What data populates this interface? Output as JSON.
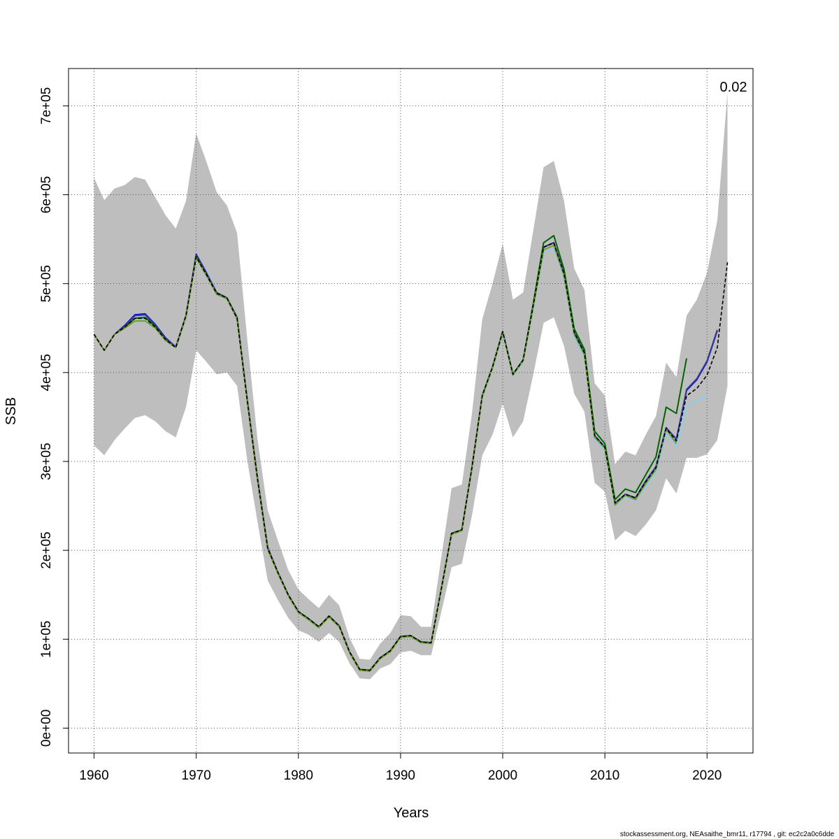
{
  "chart_data": {
    "type": "line",
    "title": "",
    "xlabel": "Years",
    "ylabel": "SSB",
    "xlim": [
      1957.5,
      2024.5
    ],
    "ylim": [
      -28000,
      742000
    ],
    "x_ticks": [
      1960,
      1970,
      1980,
      1990,
      2000,
      2010,
      2020
    ],
    "x_tick_labels": [
      "1960",
      "1970",
      "1980",
      "1990",
      "2000",
      "2010",
      "2020"
    ],
    "y_ticks": [
      0,
      100000,
      200000,
      300000,
      400000,
      500000,
      600000,
      700000
    ],
    "y_tick_labels": [
      "0e+00",
      "1e+05",
      "2e+05",
      "3e+05",
      "4e+05",
      "5e+05",
      "6e+05",
      "7e+05"
    ],
    "grid": true,
    "annotation": "0.02",
    "footer": "stockassessment.org, NEAsaithe_bmr11, r17794 , git: ec2c2a0c6dde",
    "confidence_band": {
      "color": "#bebebe",
      "x": [
        1960,
        1961,
        1962,
        1963,
        1964,
        1965,
        1966,
        1967,
        1968,
        1969,
        1970,
        1971,
        1972,
        1973,
        1974,
        1975,
        1976,
        1977,
        1978,
        1979,
        1980,
        1981,
        1982,
        1983,
        1984,
        1985,
        1986,
        1987,
        1988,
        1989,
        1990,
        1991,
        1992,
        1993,
        1994,
        1995,
        1996,
        1997,
        1998,
        1999,
        2000,
        2001,
        2002,
        2003,
        2004,
        2005,
        2006,
        2007,
        2008,
        2009,
        2010,
        2011,
        2012,
        2013,
        2014,
        2015,
        2016,
        2017,
        2018,
        2019,
        2020,
        2021,
        2022
      ],
      "upper": [
        619000,
        594000,
        607000,
        611000,
        620000,
        617000,
        597000,
        577000,
        562000,
        593000,
        669000,
        637000,
        603000,
        588000,
        557000,
        437000,
        325000,
        245000,
        211000,
        178000,
        156000,
        145000,
        135000,
        150000,
        138000,
        102000,
        78000,
        77000,
        95000,
        107000,
        127000,
        126000,
        114000,
        114000,
        193000,
        270000,
        274000,
        355000,
        460000,
        500000,
        545000,
        482000,
        490000,
        560000,
        631000,
        638000,
        593000,
        517000,
        493000,
        388000,
        374000,
        297000,
        311000,
        307000,
        330000,
        351000,
        411000,
        395000,
        464000,
        482000,
        512000,
        571000,
        715000
      ],
      "lower": [
        318000,
        307000,
        324000,
        337000,
        349000,
        352000,
        345000,
        334000,
        327000,
        361000,
        425000,
        412000,
        398000,
        400000,
        385000,
        301000,
        232000,
        166000,
        144000,
        124000,
        110000,
        105000,
        97000,
        107000,
        97000,
        73000,
        56000,
        55000,
        67000,
        72000,
        85000,
        87000,
        82000,
        82000,
        131000,
        181000,
        185000,
        240000,
        307000,
        330000,
        365000,
        327000,
        345000,
        398000,
        456000,
        462000,
        430000,
        376000,
        356000,
        276000,
        266000,
        211000,
        222000,
        216000,
        229000,
        245000,
        281000,
        264000,
        304000,
        304000,
        308000,
        324000,
        385000
      ]
    },
    "series": [
      {
        "color": "#000000",
        "dashed": true,
        "x": [
          1960,
          1961,
          1962,
          1963,
          1964,
          1965,
          1966,
          1967,
          1968,
          1969,
          1970,
          1971,
          1972,
          1973,
          1974,
          1975,
          1976,
          1977,
          1978,
          1979,
          1980,
          1981,
          1982,
          1983,
          1984,
          1985,
          1986,
          1987,
          1988,
          1989,
          1990,
          1991,
          1992,
          1993,
          1994,
          1995,
          1996,
          1997,
          1998,
          1999,
          2000,
          2001,
          2002,
          2003,
          2004,
          2005,
          2006,
          2007,
          2008,
          2009,
          2010,
          2011,
          2012,
          2013,
          2014,
          2015,
          2016,
          2017,
          2018,
          2019,
          2020,
          2021,
          2022
        ],
        "values": [
          443000,
          425000,
          443000,
          451000,
          461000,
          461000,
          451000,
          437000,
          428000,
          464000,
          530000,
          510000,
          489000,
          484000,
          461000,
          368000,
          280000,
          202000,
          175000,
          150000,
          131000,
          123000,
          114000,
          126000,
          115000,
          86000,
          66000,
          65000,
          79000,
          87000,
          103000,
          104000,
          97000,
          96000,
          157000,
          219000,
          223000,
          294000,
          374000,
          406000,
          446000,
          398000,
          414000,
          476000,
          541000,
          546000,
          511000,
          445000,
          422000,
          329000,
          316000,
          253000,
          263000,
          259000,
          277000,
          293000,
          337000,
          323000,
          374000,
          382000,
          397000,
          428000,
          524000
        ]
      },
      {
        "color": "#0000ff",
        "dashed": false,
        "x": [
          1960,
          1961,
          1962,
          1963,
          1964,
          1965,
          1966,
          1967,
          1968,
          1969,
          1970,
          1971,
          1972,
          1973,
          1974,
          1975,
          1976,
          1977,
          1978,
          1979,
          1980,
          1981,
          1982,
          1983,
          1984,
          1985,
          1986,
          1987,
          1988,
          1989,
          1990,
          1991,
          1992,
          1993,
          1994,
          1995,
          1996,
          1997,
          1998,
          1999,
          2000,
          2001,
          2002,
          2003,
          2004,
          2005,
          2006,
          2007,
          2008,
          2009,
          2010,
          2011,
          2012,
          2013,
          2014,
          2015,
          2016,
          2017,
          2018,
          2019,
          2020,
          2021
        ],
        "values": [
          443000,
          425000,
          443000,
          453000,
          465000,
          466000,
          454000,
          439000,
          429000,
          464000,
          533000,
          512000,
          490000,
          484000,
          462000,
          369000,
          281000,
          203000,
          175000,
          150000,
          131000,
          123000,
          114000,
          126000,
          115000,
          86000,
          66000,
          65000,
          79000,
          87000,
          103000,
          104000,
          97000,
          96000,
          157000,
          219000,
          223000,
          294000,
          374000,
          406000,
          446000,
          398000,
          414000,
          476000,
          541000,
          546000,
          511000,
          445000,
          422000,
          329000,
          316000,
          253000,
          263000,
          259000,
          278000,
          294000,
          338000,
          325000,
          380000,
          392000,
          412000,
          447000
        ]
      },
      {
        "color": "#3c3c8c",
        "dashed": false,
        "x": [
          1960,
          1961,
          1962,
          1963,
          1964,
          1965,
          1966,
          1967,
          1968,
          1969,
          1970,
          1971,
          1972,
          1973,
          1974,
          1975,
          1976,
          1977,
          1978,
          1979,
          1980,
          1981,
          1982,
          1983,
          1984,
          1985,
          1986,
          1987,
          1988,
          1989,
          1990,
          1991,
          1992,
          1993,
          1994,
          1995,
          1996,
          1997,
          1998,
          1999,
          2000,
          2001,
          2002,
          2003,
          2004,
          2005,
          2006,
          2007,
          2008,
          2009,
          2010,
          2011,
          2012,
          2013,
          2014,
          2015,
          2016,
          2017,
          2018,
          2019,
          2020,
          2021
        ],
        "values": [
          443000,
          425000,
          443000,
          452000,
          464000,
          465000,
          453000,
          438000,
          429000,
          464000,
          532000,
          511000,
          490000,
          484000,
          462000,
          369000,
          281000,
          203000,
          175000,
          150000,
          131000,
          123000,
          114000,
          126000,
          115000,
          86000,
          66000,
          65000,
          79000,
          87000,
          103000,
          104000,
          97000,
          96000,
          157000,
          219000,
          223000,
          294000,
          374000,
          406000,
          446000,
          398000,
          414000,
          476000,
          541000,
          546000,
          511000,
          445000,
          422000,
          329000,
          316000,
          253000,
          263000,
          259000,
          278000,
          294000,
          338000,
          325000,
          381000,
          393000,
          413000,
          448000
        ]
      },
      {
        "color": "#87ceeb",
        "dashed": false,
        "x": [
          1960,
          1961,
          1962,
          1963,
          1964,
          1965,
          1966,
          1967,
          1968,
          1969,
          1970,
          1971,
          1972,
          1973,
          1974,
          1975,
          1976,
          1977,
          1978,
          1979,
          1980,
          1981,
          1982,
          1983,
          1984,
          1985,
          1986,
          1987,
          1988,
          1989,
          1990,
          1991,
          1992,
          1993,
          1994,
          1995,
          1996,
          1997,
          1998,
          1999,
          2000,
          2001,
          2002,
          2003,
          2004,
          2005,
          2006,
          2007,
          2008,
          2009,
          2010,
          2011,
          2012,
          2013,
          2014,
          2015,
          2016,
          2017,
          2018,
          2019,
          2020
        ],
        "values": [
          443000,
          425000,
          443000,
          451000,
          460000,
          460000,
          451000,
          437000,
          428000,
          463000,
          530000,
          509000,
          488000,
          483000,
          460000,
          367000,
          279000,
          201000,
          174000,
          149000,
          130000,
          122000,
          113000,
          125000,
          114000,
          85000,
          65000,
          64000,
          78000,
          86000,
          102000,
          103000,
          96000,
          95000,
          156000,
          218000,
          222000,
          293000,
          372000,
          404000,
          444000,
          396000,
          412000,
          472000,
          535000,
          541000,
          507000,
          440000,
          418000,
          325000,
          313000,
          250000,
          260000,
          256000,
          272000,
          288000,
          332000,
          317000,
          362000,
          368000,
          374000
        ]
      },
      {
        "color": "#006400",
        "dashed": false,
        "x": [
          1960,
          1961,
          1962,
          1963,
          1964,
          1965,
          1966,
          1967,
          1968,
          1969,
          1970,
          1971,
          1972,
          1973,
          1974,
          1975,
          1976,
          1977,
          1978,
          1979,
          1980,
          1981,
          1982,
          1983,
          1984,
          1985,
          1986,
          1987,
          1988,
          1989,
          1990,
          1991,
          1992,
          1993,
          1994,
          1995,
          1996,
          1997,
          1998,
          1999,
          2000,
          2001,
          2002,
          2003,
          2004,
          2005,
          2006,
          2007,
          2008,
          2009,
          2010,
          2011,
          2012,
          2013,
          2014,
          2015,
          2016,
          2017,
          2018
        ],
        "values": [
          443000,
          425000,
          443000,
          451000,
          461000,
          462000,
          452000,
          437000,
          428000,
          463000,
          531000,
          510000,
          489000,
          484000,
          461000,
          368000,
          280000,
          202000,
          175000,
          150000,
          131000,
          123000,
          114000,
          126000,
          115000,
          86000,
          66000,
          65000,
          79000,
          87000,
          103000,
          104000,
          97000,
          96000,
          157000,
          219000,
          223000,
          294000,
          374000,
          406000,
          446000,
          398000,
          414000,
          478000,
          546000,
          554000,
          516000,
          449000,
          426000,
          334000,
          320000,
          257000,
          269000,
          265000,
          285000,
          305000,
          361000,
          354000,
          416000
        ]
      },
      {
        "color": "#7a9a2a",
        "dashed": false,
        "x": [
          1960,
          1961,
          1962,
          1963,
          1964,
          1965,
          1966,
          1967,
          1968,
          1969,
          1970,
          1971,
          1972,
          1973,
          1974,
          1975,
          1976,
          1977,
          1978,
          1979,
          1980,
          1981,
          1982,
          1983,
          1984,
          1985,
          1986,
          1987,
          1988,
          1989,
          1990,
          1991,
          1992,
          1993,
          1994,
          1995,
          1996,
          1997,
          1998,
          1999,
          2000,
          2001,
          2002,
          2003,
          2004,
          2005,
          2006,
          2007,
          2008,
          2009,
          2010,
          2011,
          2012,
          2013,
          2014,
          2015,
          2016,
          2017
        ],
        "values": [
          443000,
          425000,
          443000,
          450000,
          458000,
          458000,
          450000,
          436000,
          428000,
          463000,
          529000,
          509000,
          488000,
          483000,
          460000,
          367000,
          279000,
          201000,
          174000,
          149000,
          130000,
          122000,
          113000,
          125000,
          114000,
          85000,
          65000,
          64000,
          78000,
          86000,
          102000,
          103000,
          96000,
          95000,
          156000,
          218000,
          222000,
          293000,
          373000,
          405000,
          445000,
          397000,
          413000,
          474000,
          538000,
          543000,
          509000,
          443000,
          420000,
          327000,
          315000,
          251000,
          262000,
          257000,
          275000,
          291000,
          336000,
          320000
        ]
      }
    ]
  }
}
